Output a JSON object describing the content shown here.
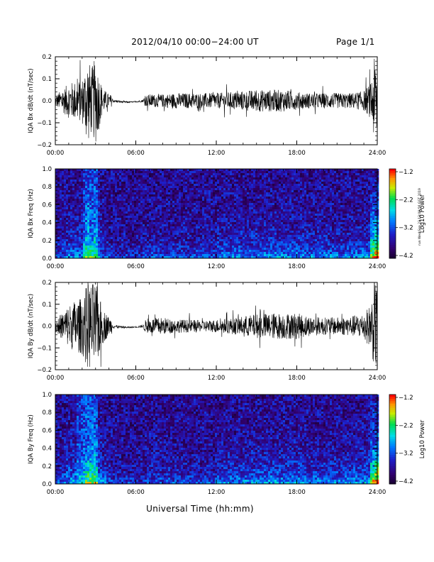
{
  "header": {
    "title": "2012/04/10  00:00−24:00 UT",
    "page": "Page 1/1"
  },
  "side_stamp": "run Wed Sep 23 13:09:56 GST 2019",
  "chart_data": [
    {
      "type": "line",
      "ylabel": "IQA Bx dB/dt (nT/sec)",
      "ylim": [
        -0.2,
        0.2
      ],
      "yticks": [
        "0.2",
        "0.1",
        "0.0",
        "−0.1",
        "−0.2"
      ],
      "xlim": [
        0,
        24
      ],
      "xticks": [
        "00:00",
        "06:00",
        "12:00",
        "18:00",
        "24:00"
      ],
      "series_color": "#000000",
      "envelope": {
        "x_hours": [
          0,
          0.5,
          1,
          1.5,
          2,
          2.4,
          2.7,
          3,
          3.5,
          4,
          5,
          6,
          7,
          8,
          9,
          10,
          11,
          12,
          13,
          14,
          15,
          16,
          17,
          18,
          19,
          20,
          21,
          22,
          23,
          23.5,
          23.8,
          24
        ],
        "amplitude": [
          0.025,
          0.05,
          0.08,
          0.09,
          0.1,
          0.2,
          0.15,
          0.2,
          0.06,
          0.03,
          0.012,
          0.008,
          0.03,
          0.03,
          0.035,
          0.035,
          0.035,
          0.035,
          0.04,
          0.045,
          0.05,
          0.05,
          0.05,
          0.04,
          0.035,
          0.035,
          0.035,
          0.035,
          0.045,
          0.08,
          0.2,
          0.2
        ]
      }
    },
    {
      "type": "heatmap",
      "ylabel": "IQA Bx Freq (Hz)",
      "ylim": [
        0,
        1.0
      ],
      "yticks": [
        "1.0",
        "0.8",
        "0.6",
        "0.4",
        "0.2",
        "0.0"
      ],
      "xlim": [
        0,
        24
      ],
      "xticks": [
        "00:00",
        "06:00",
        "12:00",
        "18:00",
        "24:00"
      ],
      "colorbar": {
        "label": "Log10 Power",
        "ticks": [
          "−1.2",
          "−2.2",
          "−3.2",
          "−4.2"
        ],
        "range": [
          -4.2,
          -1.2
        ]
      }
    },
    {
      "type": "line",
      "ylabel": "IQA By dB/dt (nT/sec)",
      "ylim": [
        -0.2,
        0.2
      ],
      "yticks": [
        "0.2",
        "0.1",
        "0.0",
        "−0.1",
        "−0.2"
      ],
      "xlim": [
        0,
        24
      ],
      "xticks": [
        "00:00",
        "06:00",
        "12:00",
        "18:00",
        "24:00"
      ],
      "series_color": "#000000",
      "envelope": {
        "x_hours": [
          0,
          0.5,
          1,
          1.5,
          2,
          2.4,
          2.7,
          3,
          3.5,
          4,
          5,
          6,
          7,
          8,
          9,
          10,
          11,
          12,
          13,
          14,
          15,
          16,
          17,
          18,
          19,
          20,
          21,
          22,
          23,
          23.5,
          23.8,
          24
        ],
        "amplitude": [
          0.03,
          0.06,
          0.1,
          0.12,
          0.13,
          0.2,
          0.2,
          0.2,
          0.09,
          0.04,
          0.015,
          0.008,
          0.035,
          0.04,
          0.03,
          0.03,
          0.025,
          0.03,
          0.035,
          0.045,
          0.055,
          0.06,
          0.06,
          0.06,
          0.045,
          0.04,
          0.04,
          0.045,
          0.06,
          0.1,
          0.2,
          0.2
        ]
      }
    },
    {
      "type": "heatmap",
      "ylabel": "IQA By Freq (Hz)",
      "ylim": [
        0,
        1.0
      ],
      "yticks": [
        "1.0",
        "0.8",
        "0.6",
        "0.4",
        "0.2",
        "0.0"
      ],
      "xlim": [
        0,
        24
      ],
      "xticks": [
        "00:00",
        "06:00",
        "12:00",
        "18:00",
        "24:00"
      ],
      "xlabel": "Universal Time (hh:mm)",
      "colorbar": {
        "label": "Log10 Power",
        "ticks": [
          "−1.2",
          "−2.2",
          "−3.2",
          "−4.2"
        ],
        "range": [
          -4.2,
          -1.2
        ]
      }
    }
  ]
}
